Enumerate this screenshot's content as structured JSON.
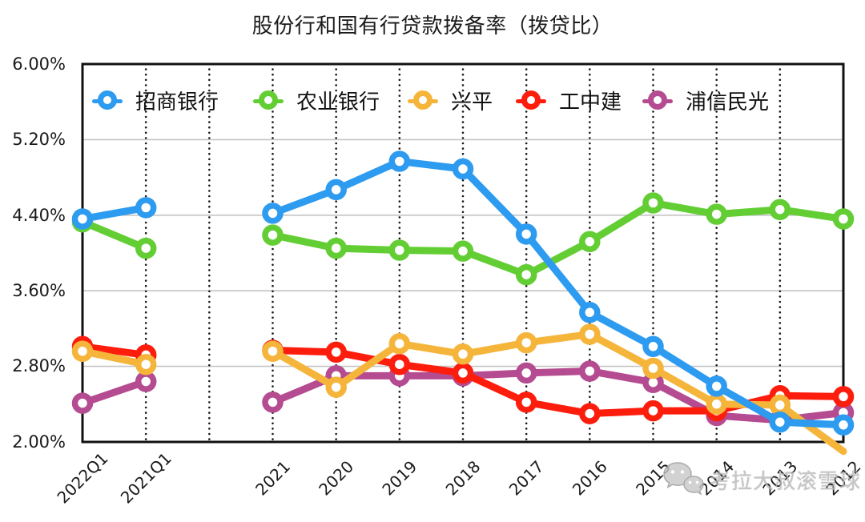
{
  "title": "股份行和国有行贷款拨备率（拨贷比）",
  "watermark": {
    "icon": "wechat-icon",
    "text": "考拉大叔滚雪球"
  },
  "chart_data": {
    "type": "line",
    "title": "股份行和国有行贷款拨备率（拨贷比）",
    "xlabel": "",
    "ylabel": "",
    "unit": "%",
    "ylim": [
      2.0,
      6.0
    ],
    "y_ticks": [
      "6.00%",
      "5.20%",
      "4.40%",
      "3.60%",
      "2.80%",
      "2.00%"
    ],
    "y_tick_values": [
      6.0,
      5.2,
      4.4,
      3.6,
      2.8,
      2.0
    ],
    "grid": {
      "horizontal": "solid-gray",
      "vertical": "dotted-black"
    },
    "legend_position": "top-inside",
    "categories": [
      "2022Q1",
      "2021Q1",
      "",
      "2021",
      "2020",
      "2019",
      "2018",
      "2017",
      "2016",
      "2015",
      "2014",
      "2013",
      "2012"
    ],
    "x_tick_labels": [
      "2022Q1",
      "2021Q1",
      "2021",
      "2020",
      "2019",
      "2018",
      "2017",
      "2016",
      "2015",
      "2014",
      "2013",
      "2012"
    ],
    "x_tick_positions": [
      0,
      1,
      3,
      4,
      5,
      6,
      7,
      8,
      9,
      10,
      11,
      12
    ],
    "series": [
      {
        "name": "招商银行",
        "color": "#2D9BF0",
        "values": [
          4.36,
          4.48,
          null,
          4.42,
          4.67,
          4.97,
          4.89,
          4.2,
          3.37,
          3.01,
          2.59,
          2.21,
          2.18
        ]
      },
      {
        "name": "农业银行",
        "color": "#63CE34",
        "values": [
          4.33,
          4.05,
          null,
          4.19,
          4.05,
          4.03,
          4.02,
          3.77,
          4.12,
          4.53,
          4.41,
          4.46,
          4.36
        ]
      },
      {
        "name": "兴平",
        "color": "#F5B53B",
        "values": [
          2.96,
          2.82,
          null,
          2.96,
          2.58,
          3.04,
          2.93,
          3.05,
          3.14,
          2.78,
          2.4,
          2.39,
          1.9
        ]
      },
      {
        "name": "工中建",
        "color": "#FD1D0D",
        "values": [
          3.01,
          2.92,
          null,
          2.97,
          2.95,
          2.82,
          2.73,
          2.42,
          2.3,
          2.33,
          2.33,
          2.49,
          2.48
        ]
      },
      {
        "name": "浦信民光",
        "color": "#B54B90",
        "values": [
          2.41,
          2.64,
          null,
          2.42,
          2.7,
          2.7,
          2.7,
          2.73,
          2.75,
          2.63,
          2.28,
          2.23,
          2.31
        ]
      }
    ],
    "draw_order": [
      4,
      3,
      2,
      1,
      0
    ]
  }
}
